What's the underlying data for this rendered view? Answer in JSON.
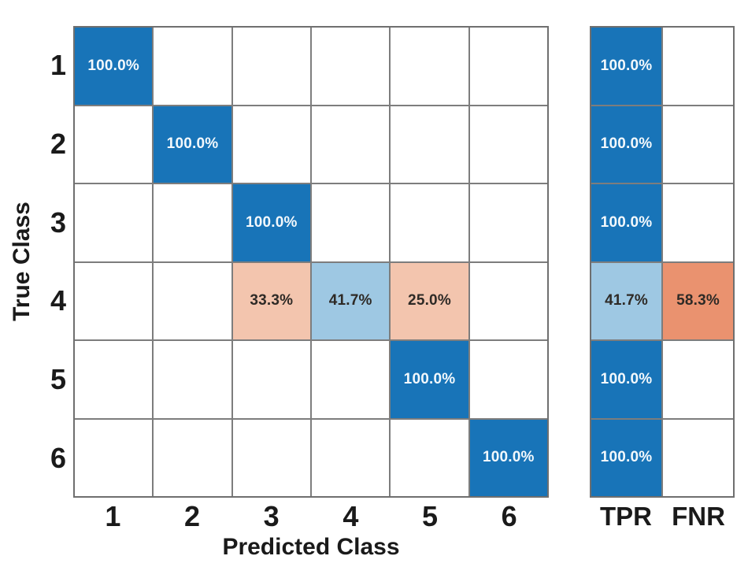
{
  "colors": {
    "blue": "#1874B8",
    "lightblue": "#9EC8E3",
    "salmon": "#F3C5AE",
    "orange": "#EA926F",
    "white": "#FFFFFF",
    "grid_line": "#7D7D7D",
    "frame": "#6F6F6F",
    "text_dark": "#2E2A26",
    "text_light": "#F2F8FC",
    "axis_text": "#1A1A1A"
  },
  "chart_data": {
    "type": "heatmap",
    "subtype": "confusion-matrix-row-normalized",
    "title": "",
    "xlabel": "Predicted Class",
    "ylabel": "True Class",
    "x_ticks": [
      "1",
      "2",
      "3",
      "4",
      "5",
      "6"
    ],
    "y_ticks": [
      "1",
      "2",
      "3",
      "4",
      "5",
      "6"
    ],
    "summary_labels": [
      "TPR",
      "FNR"
    ],
    "matrix_percent": [
      [
        100.0,
        null,
        null,
        null,
        null,
        null
      ],
      [
        null,
        100.0,
        null,
        null,
        null,
        null
      ],
      [
        null,
        null,
        100.0,
        null,
        null,
        null
      ],
      [
        null,
        null,
        33.3,
        41.7,
        25.0,
        null
      ],
      [
        null,
        null,
        null,
        null,
        100.0,
        null
      ],
      [
        null,
        null,
        null,
        null,
        null,
        100.0
      ]
    ],
    "tpr_percent": [
      100.0,
      100.0,
      100.0,
      41.7,
      100.0,
      100.0
    ],
    "fnr_percent": [
      null,
      null,
      null,
      58.3,
      null,
      null
    ],
    "main_cells": [
      {
        "r": 0,
        "c": 0,
        "v": "100.0%",
        "k": "blue"
      },
      {
        "r": 1,
        "c": 1,
        "v": "100.0%",
        "k": "blue"
      },
      {
        "r": 2,
        "c": 2,
        "v": "100.0%",
        "k": "blue"
      },
      {
        "r": 3,
        "c": 2,
        "v": "33.3%",
        "k": "salmon"
      },
      {
        "r": 3,
        "c": 3,
        "v": "41.7%",
        "k": "lightblue"
      },
      {
        "r": 3,
        "c": 4,
        "v": "25.0%",
        "k": "salmon"
      },
      {
        "r": 4,
        "c": 4,
        "v": "100.0%",
        "k": "blue"
      },
      {
        "r": 5,
        "c": 5,
        "v": "100.0%",
        "k": "blue"
      }
    ],
    "summary_rows": [
      {
        "tpr": {
          "v": "100.0%",
          "k": "blue"
        },
        "fnr": {
          "v": "",
          "k": "white"
        }
      },
      {
        "tpr": {
          "v": "100.0%",
          "k": "blue"
        },
        "fnr": {
          "v": "",
          "k": "white"
        }
      },
      {
        "tpr": {
          "v": "100.0%",
          "k": "blue"
        },
        "fnr": {
          "v": "",
          "k": "white"
        }
      },
      {
        "tpr": {
          "v": "41.7%",
          "k": "lightblue"
        },
        "fnr": {
          "v": "58.3%",
          "k": "orange"
        }
      },
      {
        "tpr": {
          "v": "100.0%",
          "k": "blue"
        },
        "fnr": {
          "v": "",
          "k": "white"
        }
      },
      {
        "tpr": {
          "v": "100.0%",
          "k": "blue"
        },
        "fnr": {
          "v": "",
          "k": "white"
        }
      }
    ]
  }
}
